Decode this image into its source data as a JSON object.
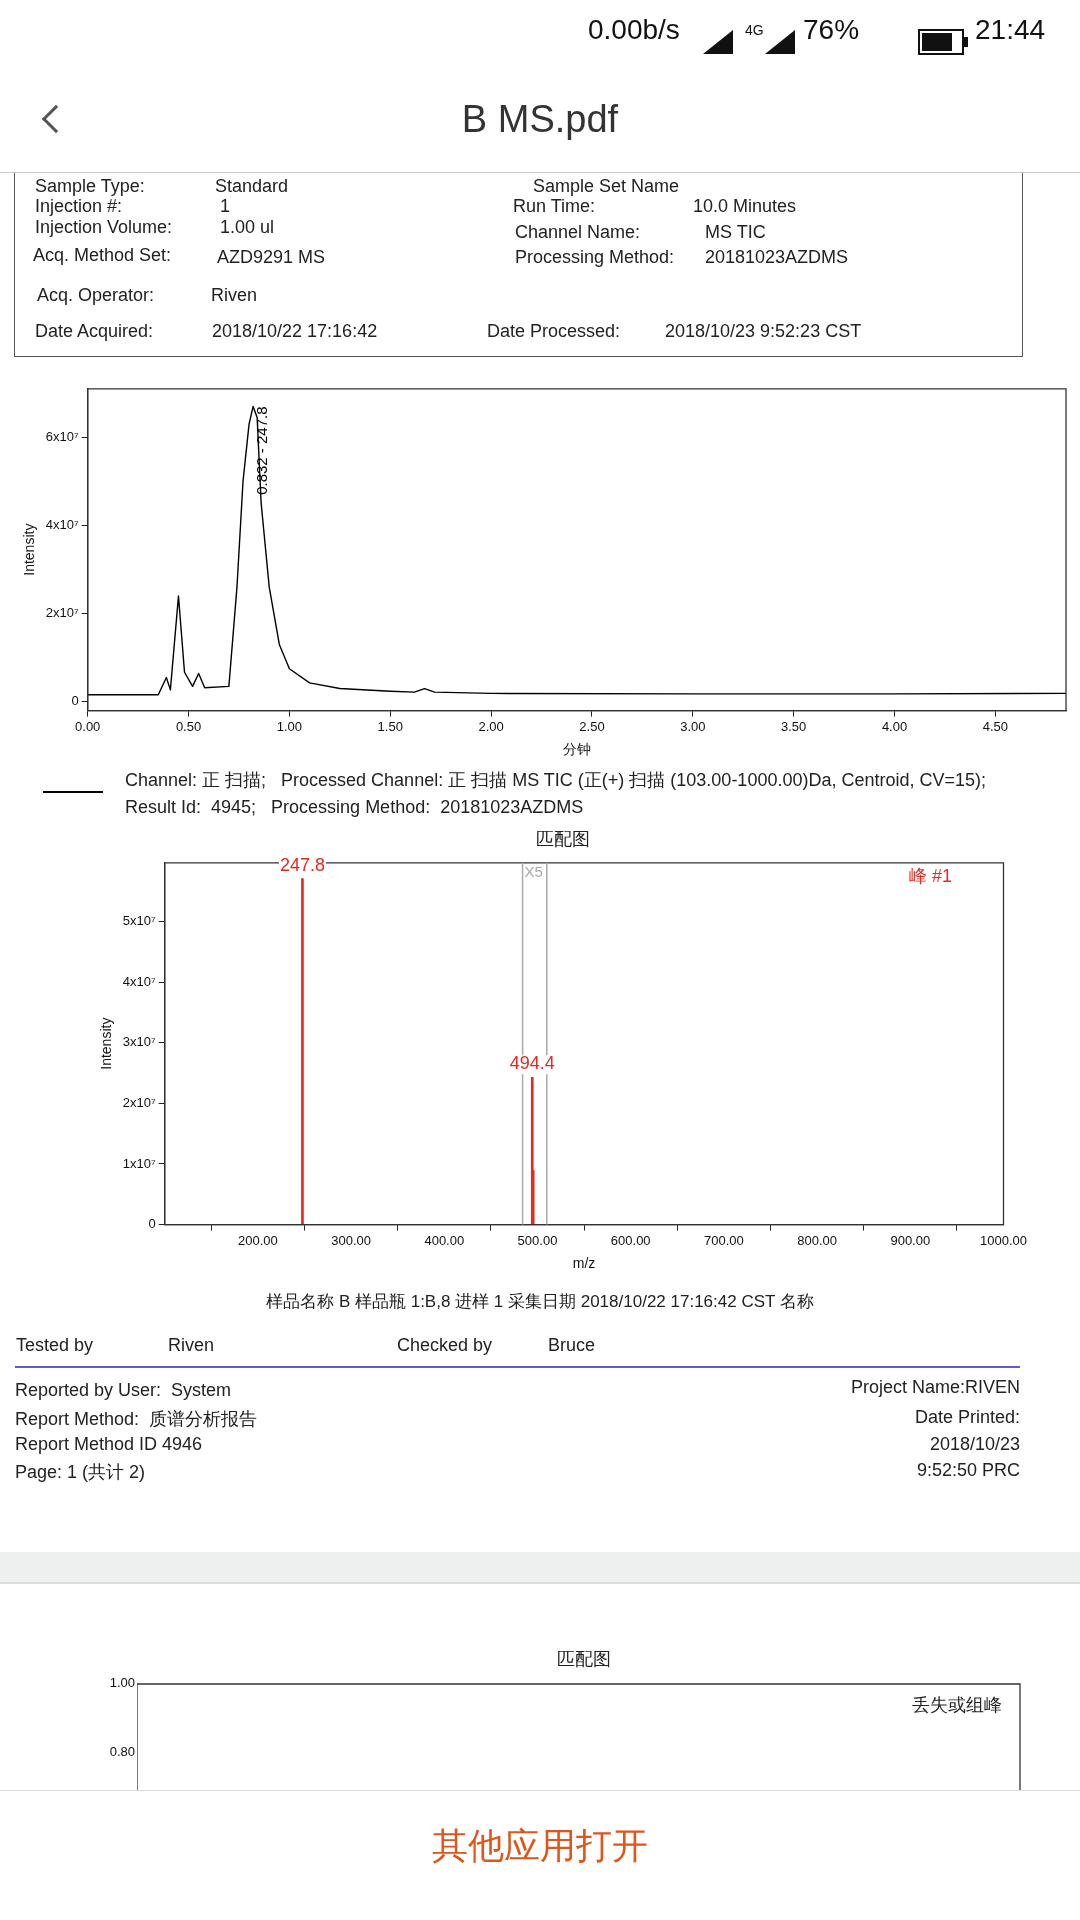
{
  "chart_data": [
    {
      "type": "line",
      "xlabel": "分钟",
      "ylabel": "Intensity",
      "legend": "bottom",
      "xlim": [
        0,
        4.85
      ],
      "ylim": [
        -2000000,
        71000000
      ],
      "xticks": [
        {
          "value": 0,
          "label": "0.00"
        },
        {
          "value": 0.5,
          "label": "0.50"
        },
        {
          "value": 1,
          "label": "1.00"
        },
        {
          "value": 1.5,
          "label": "1.50"
        },
        {
          "value": 2,
          "label": "2.00"
        },
        {
          "value": 2.5,
          "label": "2.50"
        },
        {
          "value": 3,
          "label": "3.00"
        },
        {
          "value": 3.5,
          "label": "3.50"
        },
        {
          "value": 4,
          "label": "4.00"
        },
        {
          "value": 4.5,
          "label": "4.50"
        }
      ],
      "yticks": [
        0,
        {
          "value": 20000000,
          "label": "2x10⁷"
        },
        {
          "value": 40000000,
          "label": "4x10⁷"
        },
        {
          "value": 60000000,
          "label": "6x10⁷"
        }
      ],
      "series": [
        {
          "name": "Channel: 正 扫描;   Processed Channel: 正 扫描 MS TIC (正(+) 扫描 (103.00-1000.00)Da, Centroid, CV=15);   Result Id:  4945;   Processing Method:  20181023AZDMS",
          "color": "#000000",
          "x": [
            0,
            0.35,
            0.39,
            0.41,
            0.45,
            0.48,
            0.52,
            0.55,
            0.58,
            0.7,
            0.74,
            0.77,
            0.8,
            0.82,
            0.84,
            0.86,
            0.9,
            0.95,
            1.0,
            1.1,
            1.25,
            1.5,
            1.62,
            1.67,
            1.72,
            2.0,
            3.0,
            4.0,
            4.85
          ],
          "values": [
            1600000,
            1600000,
            5500000,
            2700000,
            24000000,
            6700000,
            3500000,
            6400000,
            3200000,
            3500000,
            26000000,
            50000000,
            63000000,
            67000000,
            64500000,
            45000000,
            26000000,
            13000000,
            7500000,
            4300000,
            3000000,
            2400000,
            2200000,
            3000000,
            2200000,
            1900000,
            1800000,
            1800000,
            1900000
          ]
        }
      ],
      "annotations": [
        "0.00b/s",
        "4G",
        "76%",
        "21:44",
        "B MS.pdf",
        "Sample Type:",
        "Standard",
        "Sample Set Name",
        "Injection #:",
        "1",
        "Run Time:",
        "10.0 Minutes",
        "Injection Volume:",
        "1.00 ul",
        "Channel Name:",
        "MS TIC",
        "Acq. Method Set:",
        "AZD9291 MS",
        "Processing Method:",
        "20181023AZDMS",
        "Acq. Operator:",
        "Riven",
        "Date Acquired:",
        "2018/10/22 17:16:42",
        "Date Processed:",
        "2018/10/23 9:52:23 CST",
        {
          "text": "0.832 - 247.8",
          "x": 0.832,
          "y": 67000000
        }
      ]
    },
    {
      "type": "bar",
      "title": "匹配图",
      "xlabel": "m/z",
      "ylabel": "Intensity",
      "xlim": [
        100,
        1000
      ],
      "ylim": [
        0,
        59700000
      ],
      "xticks": [
        {
          "value": 200,
          "label": "200.00"
        },
        {
          "value": 300,
          "label": "300.00"
        },
        {
          "value": 400,
          "label": "400.00"
        },
        {
          "value": 500,
          "label": "500.00"
        },
        {
          "value": 600,
          "label": "600.00"
        },
        {
          "value": 700,
          "label": "700.00"
        },
        {
          "value": 800,
          "label": "800.00"
        },
        {
          "value": 900,
          "label": "900.00"
        },
        {
          "value": 1000,
          "label": "1000.00"
        }
      ],
      "yticks": [
        0,
        {
          "value": 10000000,
          "label": "1x10⁷"
        },
        {
          "value": 20000000,
          "label": "2x10⁷"
        },
        {
          "value": 30000000,
          "label": "3x10⁷"
        },
        {
          "value": 40000000,
          "label": "4x10⁷"
        },
        {
          "value": 50000000,
          "label": "5x10⁷"
        }
      ],
      "x": [
        247.8,
        494.4,
        495.4
      ],
      "values": [
        57100000,
        24300000,
        8900000
      ],
      "color": "#e8281e",
      "ref_lines": [
        {
          "axis": "x",
          "value": 484,
          "label": "X5",
          "color": "#a8a8a8"
        },
        {
          "axis": "x",
          "value": 510,
          "color": "#a8a8a8"
        }
      ],
      "annotations": [
        {
          "text": "247.8",
          "x": 247.8,
          "y": 57100000
        },
        {
          "text": "494.4",
          "x": 494.4,
          "y": 24300000
        },
        "峰 #1",
        "样品名称 B 样品瓶 1:B,8 进样 1 采集日期 2018/10/22 17:16:42 CST 名称",
        "Tested by",
        "Riven",
        "Checked by",
        "Bruce",
        "Reported by User:  System",
        "Report Method:  质谱分析报告",
        "Report Method ID 4946",
        "Page: 1 (共计 2)",
        "Project Name:RIVEN",
        "Date Printed:",
        "2018/10/23",
        "9:52:50 PRC"
      ]
    },
    {
      "type": "other",
      "title": "匹配图",
      "annotations": [
        "1.00",
        "0.80",
        "丢失或组峰",
        "其他应用打开"
      ]
    }
  ]
}
